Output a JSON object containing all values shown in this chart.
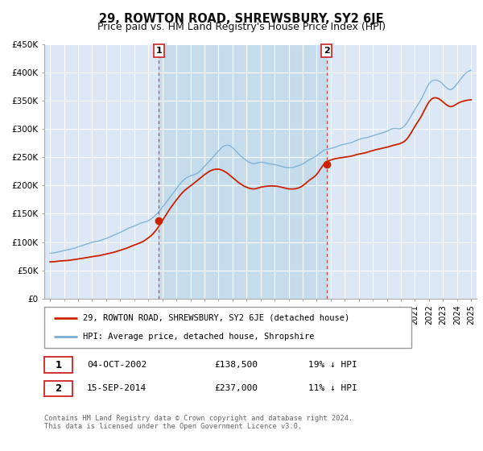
{
  "title": "29, ROWTON ROAD, SHREWSBURY, SY2 6JE",
  "subtitle": "Price paid vs. HM Land Registry's House Price Index (HPI)",
  "hpi_label": "HPI: Average price, detached house, Shropshire",
  "price_label": "29, ROWTON ROAD, SHREWSBURY, SY2 6JE (detached house)",
  "legend_footer1": "Contains HM Land Registry data © Crown copyright and database right 2024.",
  "legend_footer2": "This data is licensed under the Open Government Licence v3.0.",
  "marker1_date": "04-OCT-2002",
  "marker1_price": "£138,500",
  "marker1_hpi": "19% ↓ HPI",
  "marker2_date": "15-SEP-2014",
  "marker2_price": "£237,000",
  "marker2_hpi": "11% ↓ HPI",
  "marker1_x": 2002.75,
  "marker1_y": 138500,
  "marker2_x": 2014.7,
  "marker2_y": 237000,
  "vline1_x": 2002.75,
  "vline2_x": 2014.7,
  "ylim": [
    0,
    450000
  ],
  "xlim_start": 1994.6,
  "xlim_end": 2025.4,
  "background_color": "#ffffff",
  "plot_bg_color": "#dce8f5",
  "grid_color": "#ffffff",
  "hpi_color": "#7aafd4",
  "price_color": "#cc2200",
  "vline_color": "#cc4444",
  "marker_color": "#cc2200",
  "shade_color": "#c5dced",
  "title_fontsize": 10.5,
  "subtitle_fontsize": 9,
  "hpi_points_x": [
    1995,
    1995.5,
    1996,
    1996.5,
    1997,
    1997.5,
    1998,
    1998.5,
    1999,
    1999.5,
    2000,
    2000.5,
    2001,
    2001.5,
    2002,
    2002.5,
    2003,
    2003.5,
    2004,
    2004.5,
    2005,
    2005.5,
    2006,
    2006.5,
    2007,
    2007.5,
    2008,
    2008.5,
    2009,
    2009.5,
    2010,
    2010.5,
    2011,
    2011.5,
    2012,
    2012.5,
    2013,
    2013.5,
    2014,
    2014.5,
    2015,
    2015.5,
    2016,
    2016.5,
    2017,
    2017.5,
    2018,
    2018.5,
    2019,
    2019.5,
    2020,
    2020.5,
    2021,
    2021.5,
    2022,
    2022.5,
    2023,
    2023.5,
    2024,
    2024.5,
    2025
  ],
  "hpi_points_y": [
    80000,
    82000,
    85000,
    88000,
    92000,
    96000,
    100000,
    103000,
    107000,
    112000,
    117000,
    123000,
    128000,
    133000,
    138000,
    148000,
    162000,
    178000,
    195000,
    210000,
    218000,
    223000,
    235000,
    248000,
    262000,
    272000,
    268000,
    255000,
    245000,
    240000,
    242000,
    240000,
    238000,
    235000,
    233000,
    235000,
    240000,
    248000,
    255000,
    265000,
    268000,
    272000,
    276000,
    280000,
    285000,
    288000,
    292000,
    296000,
    300000,
    305000,
    305000,
    318000,
    340000,
    360000,
    385000,
    392000,
    385000,
    375000,
    385000,
    400000,
    408000
  ],
  "price_points_x": [
    1995,
    1995.5,
    1996,
    1996.5,
    1997,
    1997.5,
    1998,
    1998.5,
    1999,
    1999.5,
    2000,
    2000.5,
    2001,
    2001.5,
    2002,
    2002.5,
    2003,
    2003.5,
    2004,
    2004.5,
    2005,
    2005.5,
    2006,
    2006.5,
    2007,
    2007.5,
    2008,
    2008.5,
    2009,
    2009.5,
    2010,
    2010.5,
    2011,
    2011.5,
    2012,
    2012.5,
    2013,
    2013.5,
    2014,
    2014.5,
    2015,
    2015.5,
    2016,
    2016.5,
    2017,
    2017.5,
    2018,
    2018.5,
    2019,
    2019.5,
    2020,
    2020.5,
    2021,
    2021.5,
    2022,
    2022.5,
    2023,
    2023.5,
    2024,
    2024.5,
    2025
  ],
  "price_points_y": [
    65000,
    66000,
    67000,
    68000,
    70000,
    72000,
    74000,
    76000,
    79000,
    82000,
    86000,
    90000,
    95000,
    100000,
    108000,
    120000,
    138500,
    158000,
    175000,
    190000,
    200000,
    210000,
    220000,
    228000,
    230000,
    225000,
    215000,
    205000,
    198000,
    195000,
    198000,
    200000,
    200000,
    198000,
    195000,
    195000,
    200000,
    210000,
    220000,
    237000,
    245000,
    248000,
    250000,
    252000,
    255000,
    258000,
    262000,
    265000,
    268000,
    272000,
    275000,
    285000,
    305000,
    325000,
    348000,
    355000,
    348000,
    340000,
    345000,
    350000,
    352000
  ]
}
